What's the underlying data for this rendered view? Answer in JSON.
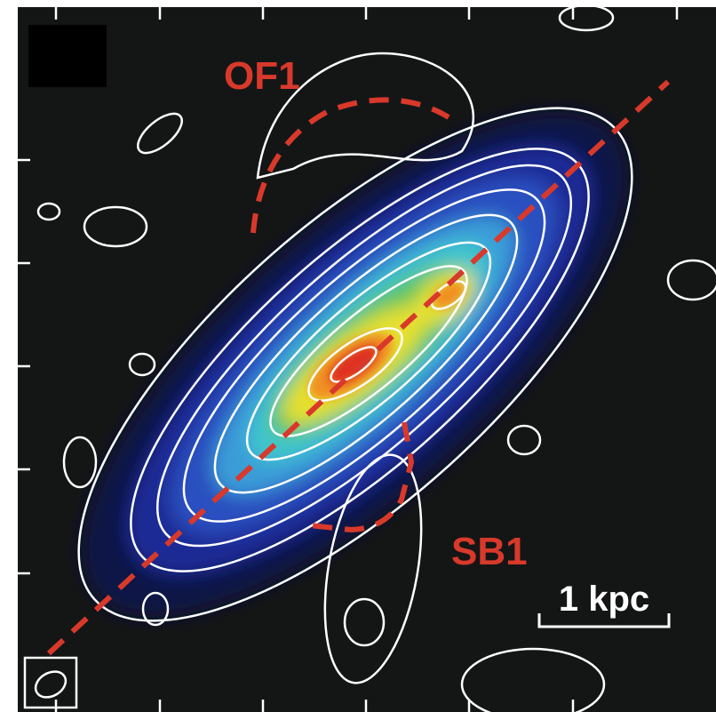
{
  "labels": {
    "outflow": "OF1",
    "superbubble": "SB1",
    "scale_bar": "1 kpc"
  }
}
